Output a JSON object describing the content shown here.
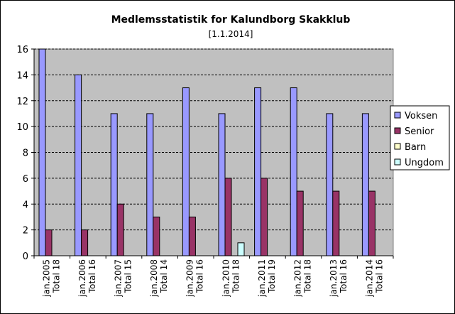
{
  "chart_data": {
    "type": "bar",
    "title": "Medlemsstatistik for Kalundborg Skakklub",
    "subtitle": "[1.1.2014]",
    "categories": [
      [
        "jan.2005",
        "Total 18"
      ],
      [
        "jan.2006",
        "Total 16"
      ],
      [
        "jan.2007",
        "Total 15"
      ],
      [
        "jan.2008",
        "Total 14"
      ],
      [
        "jan.2009",
        "Total 16"
      ],
      [
        "jan.2010",
        "Total 18"
      ],
      [
        "jan.2011",
        "Total 19"
      ],
      [
        "jan.2012",
        "Total 18"
      ],
      [
        "jan.2013",
        "Total 16"
      ],
      [
        "jan.2014",
        "Total 16"
      ]
    ],
    "series": [
      {
        "name": "Voksen",
        "color": "#9999ff",
        "values": [
          16,
          14,
          11,
          11,
          13,
          11,
          13,
          13,
          11,
          11
        ]
      },
      {
        "name": "Senior",
        "color": "#993366",
        "values": [
          2,
          2,
          4,
          3,
          3,
          6,
          6,
          5,
          5,
          5
        ]
      },
      {
        "name": "Barn",
        "color": "#ffffcc",
        "values": [
          0,
          0,
          0,
          0,
          0,
          0,
          0,
          0,
          0,
          0
        ]
      },
      {
        "name": "Ungdom",
        "color": "#ccffff",
        "values": [
          0,
          0,
          0,
          0,
          0,
          1,
          0,
          0,
          0,
          0
        ]
      }
    ],
    "yticks": [
      0,
      2,
      4,
      6,
      8,
      10,
      12,
      14,
      16
    ],
    "ylim": [
      0,
      16
    ],
    "grid": true,
    "plot_background": "#c0c0c0",
    "legend_position": "right"
  }
}
